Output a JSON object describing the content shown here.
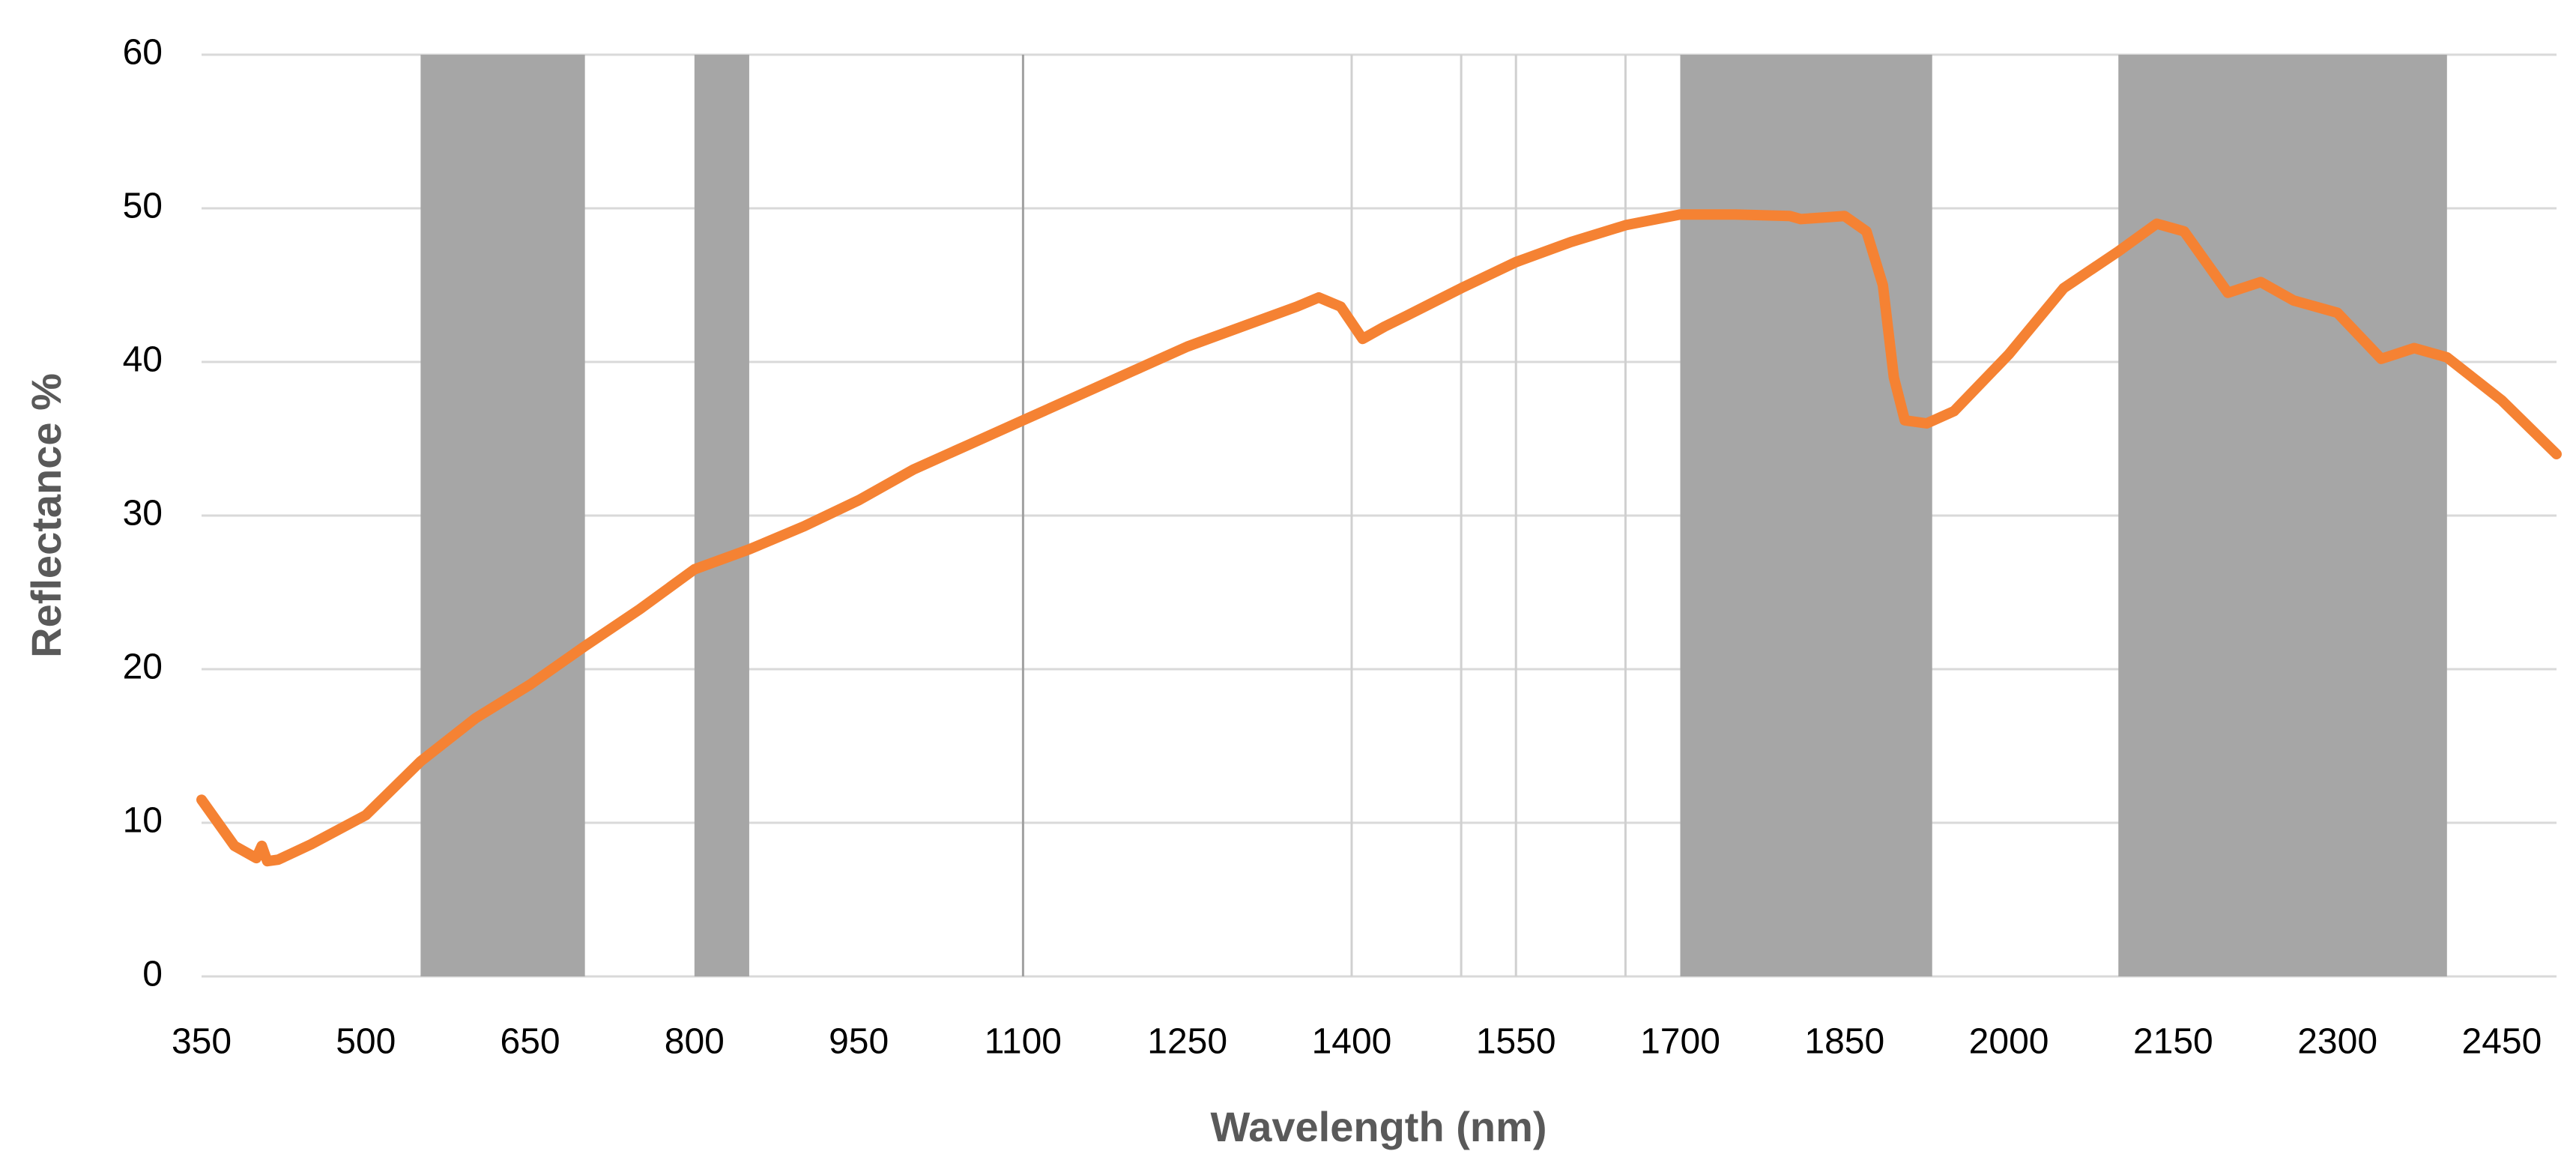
{
  "chart_data": {
    "type": "line",
    "xlabel": "Wavelength (nm)",
    "ylabel": "Reflectance %",
    "x": [
      350,
      360,
      380,
      400,
      405,
      410,
      420,
      450,
      500,
      550,
      600,
      650,
      700,
      750,
      800,
      850,
      900,
      950,
      1000,
      1050,
      1100,
      1150,
      1200,
      1250,
      1300,
      1350,
      1370,
      1390,
      1410,
      1430,
      1450,
      1500,
      1550,
      1600,
      1650,
      1700,
      1750,
      1800,
      1810,
      1850,
      1870,
      1885,
      1895,
      1905,
      1925,
      1950,
      2000,
      2050,
      2100,
      2135,
      2160,
      2200,
      2230,
      2260,
      2300,
      2340,
      2370,
      2400,
      2450,
      2500
    ],
    "series": [
      {
        "name": "Reflectance",
        "color": "#f58233",
        "values": [
          11.5,
          10.5,
          8.5,
          7.7,
          8.5,
          7.5,
          7.6,
          8.6,
          10.5,
          14,
          16.8,
          19,
          21.5,
          23.9,
          26.5,
          27.8,
          29.3,
          31,
          33,
          34.6,
          36.2,
          37.8,
          39.4,
          41,
          42.3,
          43.6,
          44.2,
          43.6,
          41.5,
          42.3,
          43,
          44.8,
          46.5,
          47.8,
          48.9,
          49.6,
          49.6,
          49.5,
          49.3,
          49.5,
          48.5,
          45,
          39,
          36.2,
          36,
          36.8,
          40.5,
          44.8,
          47.2,
          49,
          48.5,
          44.5,
          45.2,
          44,
          43.2,
          40.2,
          40.9,
          40.3,
          37.5,
          34
        ]
      }
    ],
    "xlim": [
      350,
      2500
    ],
    "xticks": [
      350,
      500,
      650,
      800,
      950,
      1100,
      1250,
      1400,
      1550,
      1700,
      1850,
      2000,
      2150,
      2300,
      2450
    ],
    "ylim": [
      0,
      60
    ],
    "yticks": [
      0,
      10,
      20,
      30,
      40,
      50,
      60
    ],
    "grid": true,
    "bands": [
      [
        550,
        700
      ],
      [
        800,
        850
      ],
      [
        1700,
        1930
      ],
      [
        2100,
        2400
      ]
    ],
    "band_color": "#a6a6a6",
    "vlines": [
      1100,
      1400,
      1500,
      1550,
      1650
    ],
    "vline_colors": [
      "#a0a0a0",
      "#d0d0d0",
      "#d0d0d0",
      "#d0d0d0",
      "#d0d0d0"
    ]
  }
}
